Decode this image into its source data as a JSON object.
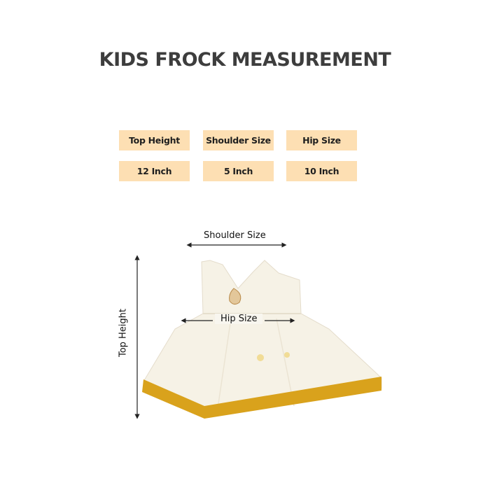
{
  "title": "KIDS FROCK MEASUREMENT",
  "table": {
    "headers": [
      "Top Height",
      "Shoulder Size",
      "Hip Size"
    ],
    "values": [
      "12 Inch",
      "5 Inch",
      "10  Inch"
    ]
  },
  "diagram": {
    "shoulder_label": "Shoulder Size",
    "hip_label": "Hip Size",
    "height_label": "Top Height"
  },
  "colors": {
    "cell_bg": "#fddfb3",
    "hem_gold": "#d9a21c",
    "fabric": "#f6f2e6"
  }
}
